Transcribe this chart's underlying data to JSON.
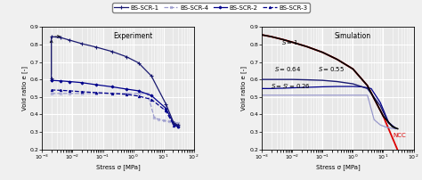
{
  "title_left": "Experiment",
  "title_right": "Simulation",
  "xlabel": "Stress σ [MPa]",
  "ylabel": "Void ratio e [-]",
  "ylim": [
    0.2,
    0.9
  ],
  "background_color": "#e8e8e8",
  "grid_color": "#ffffff",
  "exp_scr1_x": [
    0.002,
    0.002,
    0.004,
    0.008,
    0.02,
    0.06,
    0.2,
    0.6,
    1.5,
    4.0,
    12.0,
    22.0,
    30.0
  ],
  "exp_scr1_y": [
    0.605,
    0.845,
    0.84,
    0.825,
    0.805,
    0.785,
    0.76,
    0.73,
    0.695,
    0.62,
    0.46,
    0.35,
    0.34
  ],
  "exp_scr2_x": [
    0.002,
    0.002,
    0.004,
    0.008,
    0.02,
    0.06,
    0.2,
    0.6,
    1.5,
    4.0,
    12.0,
    22.0,
    30.0
  ],
  "exp_scr2_y": [
    0.595,
    0.595,
    0.592,
    0.588,
    0.582,
    0.57,
    0.558,
    0.545,
    0.535,
    0.508,
    0.435,
    0.345,
    0.333
  ],
  "exp_scr3_x": [
    0.002,
    0.004,
    0.008,
    0.02,
    0.06,
    0.2,
    0.6,
    1.5,
    4.0,
    12.0,
    22.0,
    30.0
  ],
  "exp_scr3_y": [
    0.54,
    0.538,
    0.535,
    0.53,
    0.525,
    0.52,
    0.515,
    0.505,
    0.486,
    0.42,
    0.338,
    0.33
  ],
  "exp_scr4_x": [
    0.002,
    0.004,
    0.008,
    0.02,
    0.06,
    0.2,
    0.6,
    1.5,
    3.0,
    5.0,
    7.0,
    10.0,
    15.0,
    22.0,
    30.0
  ],
  "exp_scr4_y": [
    0.52,
    0.52,
    0.52,
    0.52,
    0.52,
    0.52,
    0.52,
    0.52,
    0.52,
    0.38,
    0.372,
    0.365,
    0.36,
    0.355,
    0.35
  ],
  "sim_ncc_x": [
    0.001,
    0.002,
    0.005,
    0.01,
    0.03,
    0.1,
    0.3,
    1.0,
    3.0,
    10.0,
    30.0,
    100.0
  ],
  "sim_ncc_y": [
    0.855,
    0.845,
    0.828,
    0.813,
    0.788,
    0.755,
    0.715,
    0.66,
    0.565,
    0.39,
    0.195,
    0.05
  ],
  "sim_s1_x": [
    0.001,
    0.002,
    0.005,
    0.01,
    0.03,
    0.1,
    0.3,
    1.0,
    3.0,
    10.0,
    20.0,
    30.0
  ],
  "sim_s1_y": [
    0.855,
    0.845,
    0.828,
    0.813,
    0.788,
    0.755,
    0.715,
    0.66,
    0.565,
    0.39,
    0.33,
    0.318
  ],
  "sim_s064_x": [
    0.001,
    0.002,
    0.005,
    0.01,
    0.03,
    0.1,
    0.3,
    1.0,
    3.0,
    8.0,
    15.0,
    25.0
  ],
  "sim_s064_y": [
    0.6,
    0.6,
    0.6,
    0.6,
    0.598,
    0.595,
    0.588,
    0.575,
    0.548,
    0.45,
    0.35,
    0.322
  ],
  "sim_s055_x": [
    0.001,
    0.002,
    0.005,
    0.01,
    0.03,
    0.1,
    0.3,
    1.0,
    2.0,
    4.0,
    8.0,
    15.0,
    25.0
  ],
  "sim_s055_y": [
    0.548,
    0.548,
    0.55,
    0.552,
    0.555,
    0.558,
    0.56,
    0.56,
    0.558,
    0.548,
    0.468,
    0.355,
    0.322
  ],
  "sim_s026_x": [
    0.001,
    0.002,
    0.005,
    0.01,
    0.03,
    0.1,
    0.3,
    1.0,
    3.0,
    5.0,
    8.0,
    12.0,
    20.0,
    25.0
  ],
  "sim_s026_y": [
    0.51,
    0.51,
    0.51,
    0.51,
    0.51,
    0.51,
    0.51,
    0.51,
    0.51,
    0.37,
    0.34,
    0.328,
    0.32,
    0.318
  ],
  "color_dark_navy": "#191970",
  "color_medium_blue": "#00008b",
  "color_light_blue": "#9999cc",
  "color_red": "#dd0000",
  "color_black": "#000000"
}
